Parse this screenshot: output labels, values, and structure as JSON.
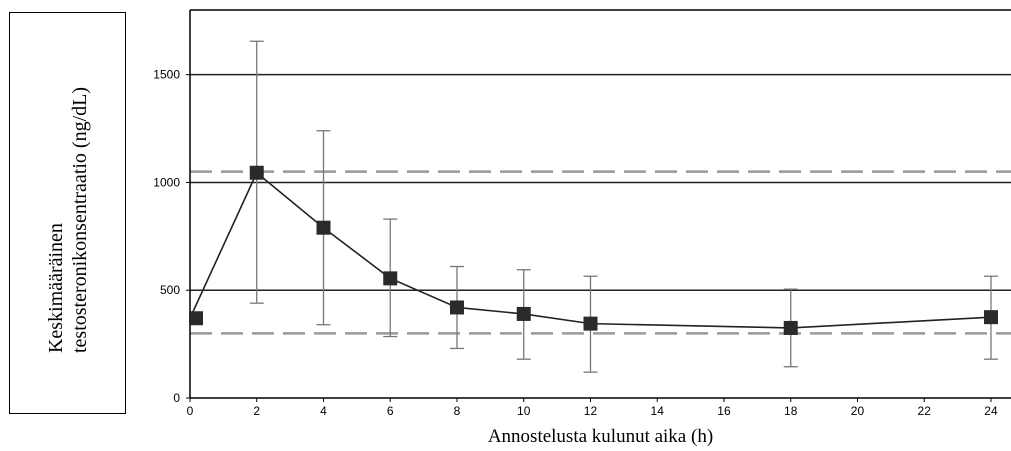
{
  "chart_data": {
    "type": "line",
    "ylabel_lines": [
      "Keskimääräinen",
      "testosteronikonsentraatio  (ng/dL)"
    ],
    "xlabel": "Annostelusta kulunut aika (h)",
    "xlim": [
      0,
      24.6
    ],
    "ylim": [
      0,
      1800
    ],
    "x_ticks": [
      "0",
      "2",
      "4",
      "6",
      "8",
      "10",
      "12",
      "14",
      "16",
      "18",
      "20",
      "22",
      "24"
    ],
    "y_ticks": [
      "0",
      "500",
      "1000",
      "1500"
    ],
    "grid_lines_y": [
      500,
      1000,
      1500
    ],
    "reference_lines_y": [
      1050,
      300
    ],
    "series": [
      {
        "x": [
          0,
          2,
          4,
          6,
          8,
          10,
          12,
          18,
          24
        ],
        "y": [
          370,
          1045,
          790,
          555,
          420,
          390,
          345,
          325,
          375
        ],
        "error_low": [
          null,
          440,
          340,
          285,
          230,
          180,
          120,
          145,
          180
        ],
        "error_high": [
          null,
          1655,
          1240,
          830,
          610,
          595,
          565,
          505,
          565
        ]
      }
    ]
  }
}
